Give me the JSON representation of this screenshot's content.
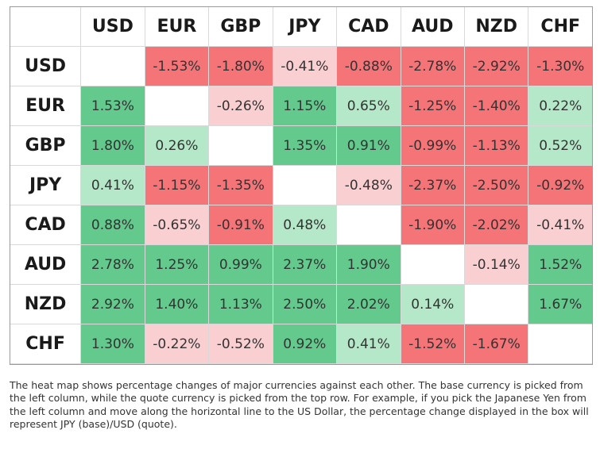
{
  "colors": {
    "strong_positive": "#63c98c",
    "weak_positive": "#b5e8c8",
    "strong_negative": "#f47478",
    "weak_negative": "#f9cfd1",
    "neutral": "#ffffff"
  },
  "chart_data": {
    "type": "heatmap",
    "columns": [
      "USD",
      "EUR",
      "GBP",
      "JPY",
      "CAD",
      "AUD",
      "NZD",
      "CHF"
    ],
    "rows": [
      "USD",
      "EUR",
      "GBP",
      "JPY",
      "CAD",
      "AUD",
      "NZD",
      "CHF"
    ],
    "values": [
      [
        null,
        -1.53,
        -1.8,
        -0.41,
        -0.88,
        -2.78,
        -2.92,
        -1.3
      ],
      [
        1.53,
        null,
        -0.26,
        1.15,
        0.65,
        -1.25,
        -1.4,
        0.22
      ],
      [
        1.8,
        0.26,
        null,
        1.35,
        0.91,
        -0.99,
        -1.13,
        0.52
      ],
      [
        0.41,
        -1.15,
        -1.35,
        null,
        -0.48,
        -2.37,
        -2.5,
        -0.92
      ],
      [
        0.88,
        -0.65,
        -0.91,
        0.48,
        null,
        -1.9,
        -2.02,
        -0.41
      ],
      [
        2.78,
        1.25,
        0.99,
        2.37,
        1.9,
        null,
        -0.14,
        1.52
      ],
      [
        2.92,
        1.4,
        1.13,
        2.5,
        2.02,
        0.14,
        null,
        1.67
      ],
      [
        1.3,
        -0.22,
        -0.52,
        0.92,
        0.41,
        -1.52,
        -1.67,
        null
      ]
    ],
    "labels": [
      [
        "",
        "-1.53%",
        "-1.80%",
        "-0.41%",
        "-0.88%",
        "-2.78%",
        "-2.92%",
        "-1.30%"
      ],
      [
        "1.53%",
        "",
        "-0.26%",
        "1.15%",
        "0.65%",
        "-1.25%",
        "-1.40%",
        "0.22%"
      ],
      [
        "1.80%",
        "0.26%",
        "",
        "1.35%",
        "0.91%",
        "-0.99%",
        "-1.13%",
        "0.52%"
      ],
      [
        "0.41%",
        "-1.15%",
        "-1.35%",
        "",
        "-0.48%",
        "-2.37%",
        "-2.50%",
        "-0.92%"
      ],
      [
        "0.88%",
        "-0.65%",
        "-0.91%",
        "0.48%",
        "",
        "-1.90%",
        "-2.02%",
        "-0.41%"
      ],
      [
        "2.78%",
        "1.25%",
        "0.99%",
        "2.37%",
        "1.90%",
        "",
        "-0.14%",
        "1.52%"
      ],
      [
        "2.92%",
        "1.40%",
        "1.13%",
        "2.50%",
        "2.02%",
        "0.14%",
        "",
        "1.67%"
      ],
      [
        "1.30%",
        "-0.22%",
        "-0.52%",
        "0.92%",
        "0.41%",
        "-1.52%",
        "-1.67%",
        ""
      ]
    ],
    "intensity": [
      [
        "neutral",
        "strong_negative",
        "strong_negative",
        "weak_negative",
        "strong_negative",
        "strong_negative",
        "strong_negative",
        "strong_negative"
      ],
      [
        "strong_positive",
        "neutral",
        "weak_negative",
        "strong_positive",
        "weak_positive",
        "strong_negative",
        "strong_negative",
        "weak_positive"
      ],
      [
        "strong_positive",
        "weak_positive",
        "neutral",
        "strong_positive",
        "strong_positive",
        "strong_negative",
        "strong_negative",
        "weak_positive"
      ],
      [
        "weak_positive",
        "strong_negative",
        "strong_negative",
        "neutral",
        "weak_negative",
        "strong_negative",
        "strong_negative",
        "strong_negative"
      ],
      [
        "strong_positive",
        "weak_negative",
        "strong_negative",
        "weak_positive",
        "neutral",
        "strong_negative",
        "strong_negative",
        "weak_negative"
      ],
      [
        "strong_positive",
        "strong_positive",
        "strong_positive",
        "strong_positive",
        "strong_positive",
        "neutral",
        "weak_negative",
        "strong_positive"
      ],
      [
        "strong_positive",
        "strong_positive",
        "strong_positive",
        "strong_positive",
        "strong_positive",
        "weak_positive",
        "neutral",
        "strong_positive"
      ],
      [
        "strong_positive",
        "weak_negative",
        "weak_negative",
        "strong_positive",
        "weak_positive",
        "strong_negative",
        "strong_negative",
        "neutral"
      ]
    ]
  },
  "caption": "The heat map shows percentage changes of major currencies against each other. The base currency is picked from the left column, while the quote currency is picked from the top row. For example, if you pick the Japanese Yen from the left column and move along the horizontal line to the US Dollar, the percentage change displayed in the box will represent JPY (base)/USD (quote)."
}
